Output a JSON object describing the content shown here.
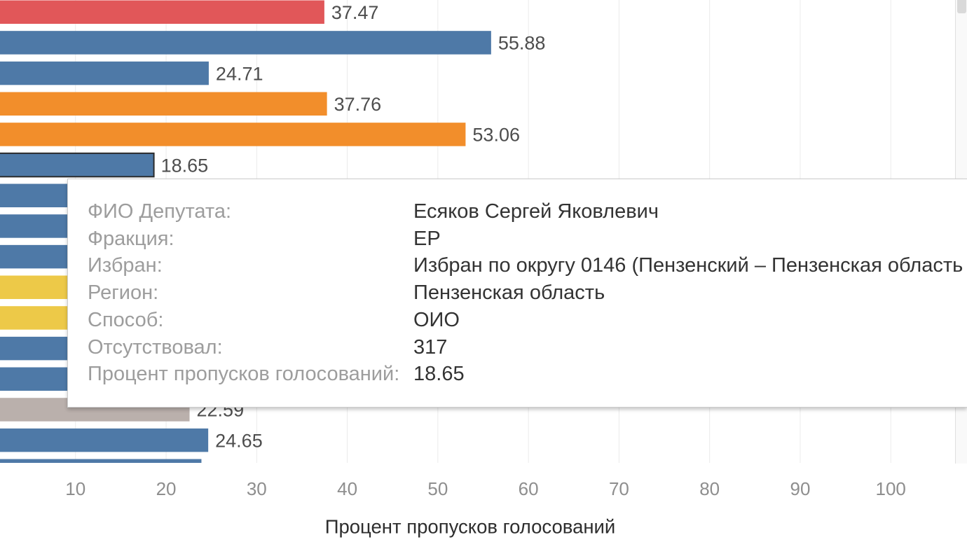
{
  "chart_data": {
    "type": "bar",
    "orientation": "horizontal",
    "values": [
      37.47,
      55.88,
      24.71,
      37.76,
      53.06,
      18.65,
      null,
      null,
      null,
      null,
      null,
      null,
      null,
      22.59,
      24.65,
      23.9
    ],
    "colors": [
      "#e15759",
      "#4e79a7",
      "#4e79a7",
      "#f28e2b",
      "#f28e2b",
      "#4e79a7",
      "#4e79a7",
      "#4e79a7",
      "#4e79a7",
      "#edc948",
      "#edc948",
      "#4e79a7",
      "#4e79a7",
      "#bab0ac",
      "#4e79a7",
      "#4e79a7"
    ],
    "highlighted_index": 5,
    "xlabel": "Процент пропусков голосований",
    "ylabel": "",
    "xlim": [
      0,
      107.1
    ],
    "xticks": [
      10,
      20,
      30,
      40,
      50,
      60,
      70,
      80,
      90,
      100
    ],
    "grid": true,
    "legend": "none"
  },
  "tooltip": {
    "rows": [
      {
        "label": "ФИО Депутата:",
        "value": "Есяков Сергей Яковлевич"
      },
      {
        "label": "Фракция:",
        "value": "ЕР"
      },
      {
        "label": "Избран:",
        "value": "Избран по округу 0146 (Пензенский – Пензенская область"
      },
      {
        "label": "Регион:",
        "value": "Пензенская область"
      },
      {
        "label": "Способ:",
        "value": "ОИО"
      },
      {
        "label": "Отсутствовал:",
        "value": "317"
      },
      {
        "label": "Процент пропусков голосований:",
        "value": "18.65"
      }
    ]
  }
}
